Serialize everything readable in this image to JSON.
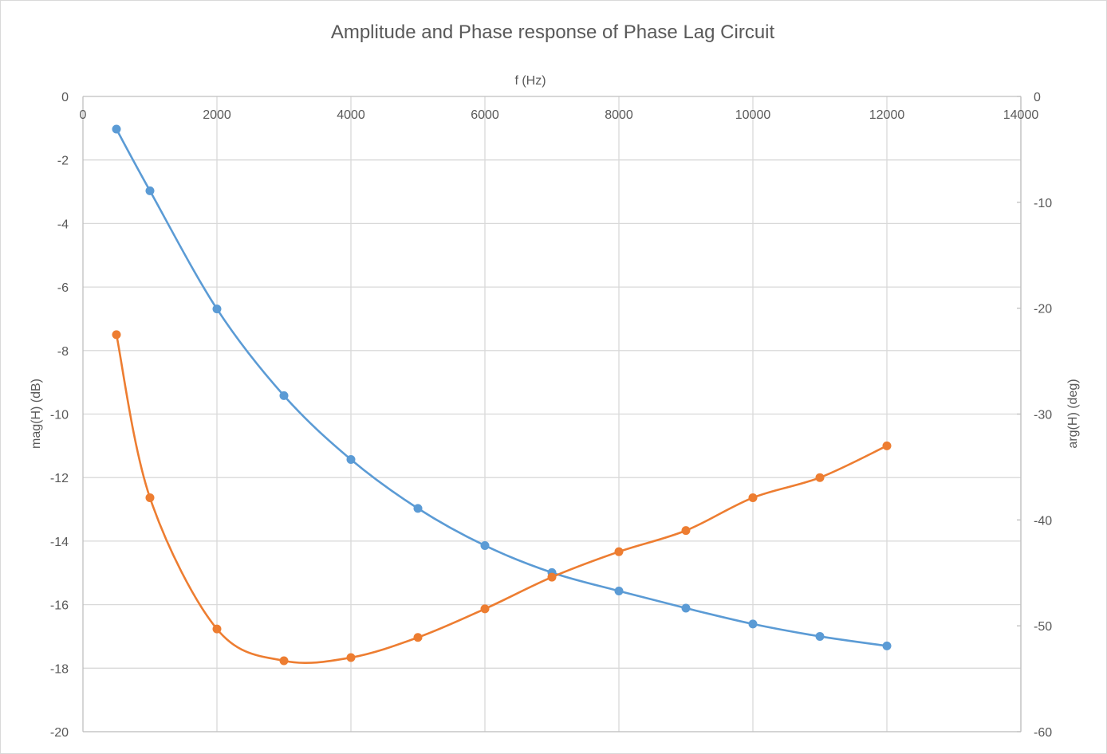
{
  "chart_data": {
    "type": "scatter",
    "title": "Amplitude and Phase response  of Phase Lag Circuit",
    "xlabel": "f (Hz)",
    "ylabel": "mag(H) (dB)",
    "y2label": "arg(H) (deg)",
    "xlim": [
      0,
      14000
    ],
    "ylim": [
      -20,
      0
    ],
    "y2lim": [
      -60,
      0
    ],
    "x_ticks": [
      "0",
      "2000",
      "4000",
      "6000",
      "8000",
      "10000",
      "12000",
      "14000"
    ],
    "y_ticks": [
      "0",
      "-2",
      "-4",
      "-6",
      "-8",
      "-10",
      "-12",
      "-14",
      "-16",
      "-18",
      "-20"
    ],
    "y2_ticks": [
      "0",
      "-10",
      "-20",
      "-30",
      "-40",
      "-50",
      "-60"
    ],
    "x_axis_position": "top",
    "grid": true,
    "smooth_lines": true,
    "series": [
      {
        "axis": "left",
        "color": "#5b9bd5",
        "x": [
          500,
          1000,
          2000,
          3000,
          4000,
          5000,
          6000,
          7000,
          8000,
          9000,
          10000,
          11000,
          12000
        ],
        "values": [
          -1.03,
          -2.97,
          -6.69,
          -9.42,
          -11.43,
          -12.97,
          -14.14,
          -14.99,
          -15.57,
          -16.11,
          -16.61,
          -17.0,
          -17.3
        ]
      },
      {
        "axis": "right",
        "color": "#ed7d31",
        "x": [
          500,
          1000,
          2000,
          3000,
          4000,
          5000,
          6000,
          7000,
          8000,
          9000,
          10000,
          11000,
          12000
        ],
        "values": [
          -22.5,
          -37.9,
          -50.3,
          -53.3,
          -53.0,
          -51.1,
          -48.4,
          -45.4,
          -43.0,
          -41.0,
          -37.9,
          -36.0,
          -33.0
        ]
      }
    ]
  }
}
